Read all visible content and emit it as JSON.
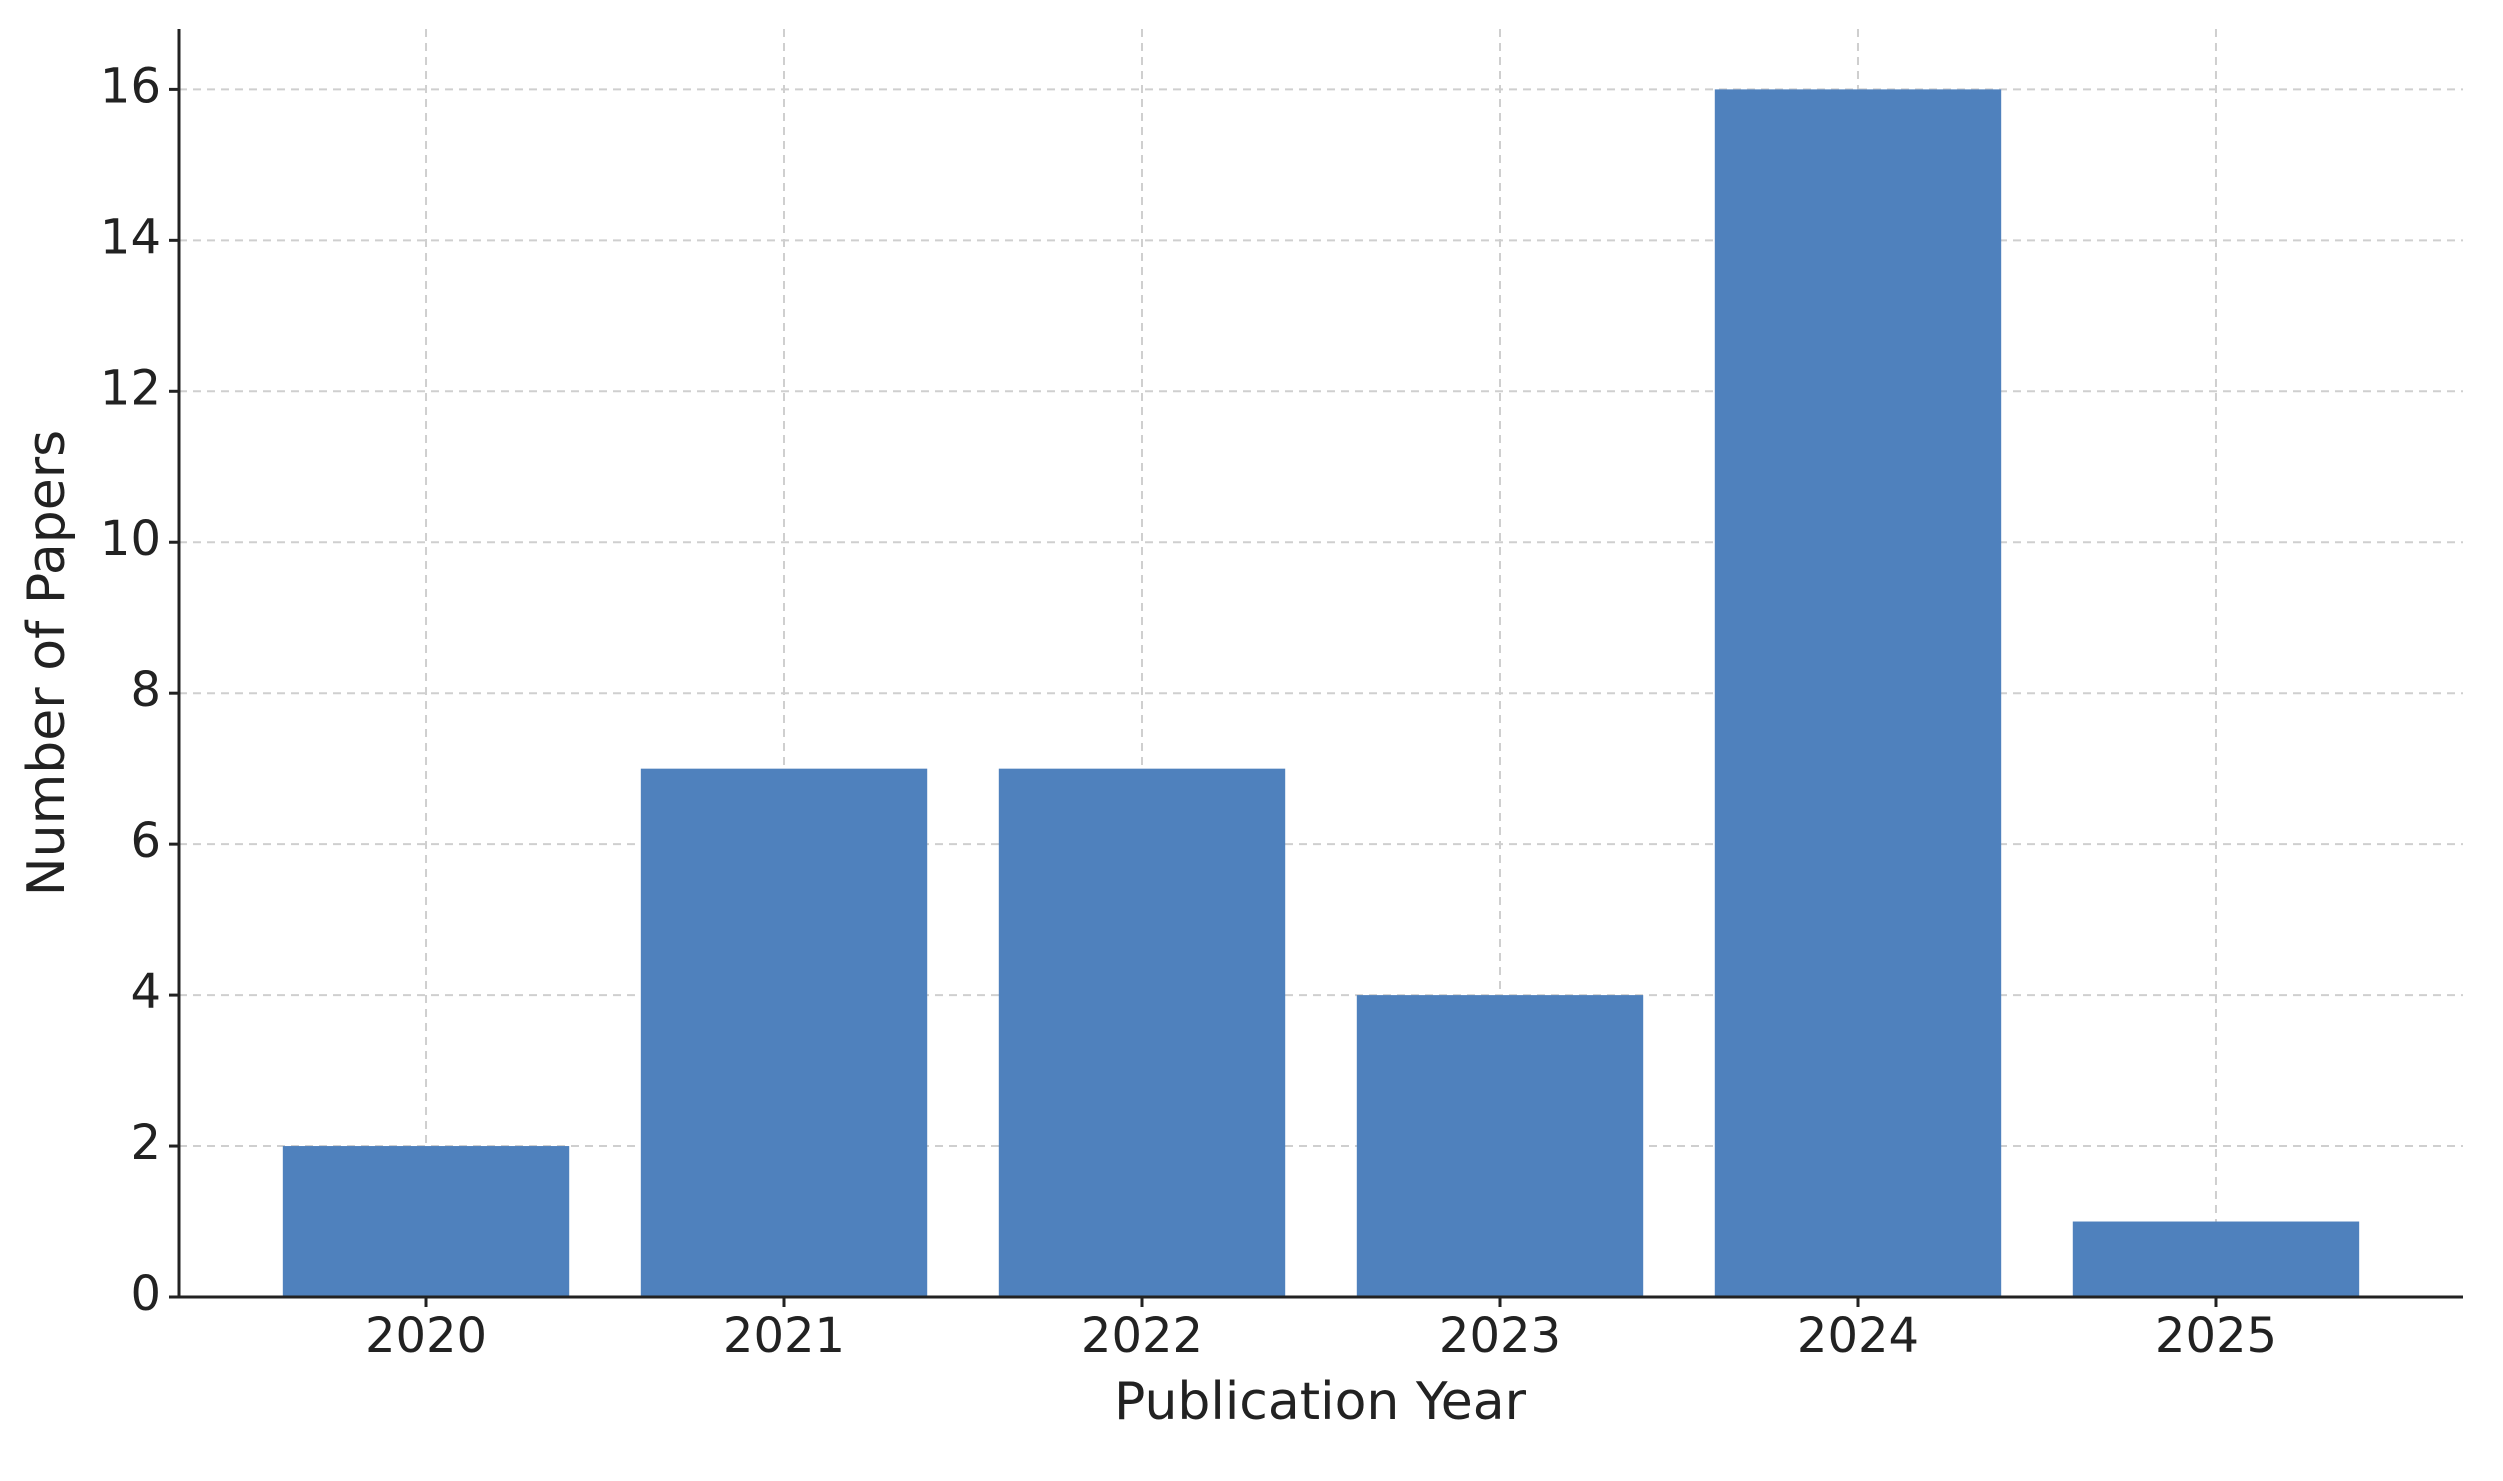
{
  "chart_data": {
    "type": "bar",
    "x_label": "Publication Year",
    "y_label": "Number of Papers",
    "categories": [
      "2020",
      "2021",
      "2022",
      "2023",
      "2024",
      "2025"
    ],
    "values": [
      2,
      7,
      7,
      4,
      16,
      1
    ],
    "color": "#4f81bd",
    "ylim": [
      0,
      16.8
    ],
    "yticks": [
      0,
      2,
      4,
      6,
      8,
      10,
      12,
      14,
      16
    ],
    "grid": true
  }
}
